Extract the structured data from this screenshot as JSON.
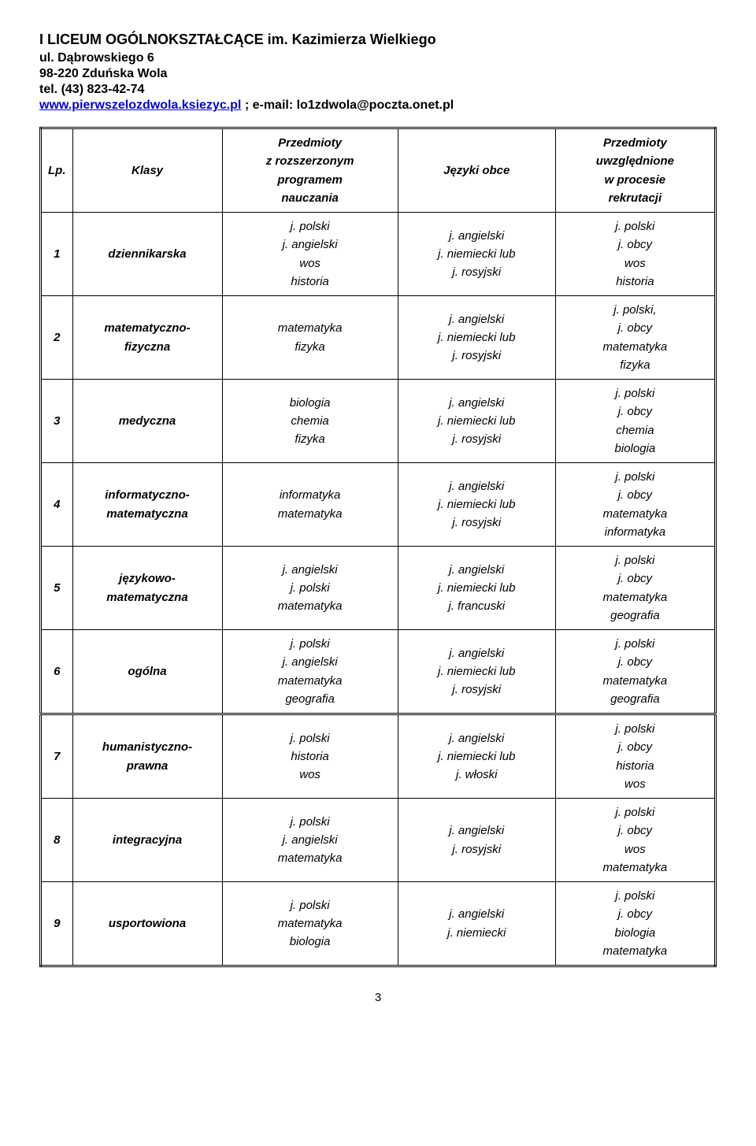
{
  "header": {
    "title": "I LICEUM OGÓLNOKSZTAŁCĄCE im. Kazimierza Wielkiego",
    "address": "ul. Dąbrowskiego 6",
    "postcode": "98-220 Zduńska Wola",
    "phone": "tel. (43) 823-42-74",
    "link": "www.pierwszelozdwola.ksiezyc.pl",
    "email_label": " ; e-mail: lo1zdwola@poczta.onet.pl"
  },
  "columns": {
    "lp": "Lp.",
    "klasy": "Klasy",
    "przedmioty_rozszerzone": [
      "Przedmioty",
      "z rozszerzonym",
      "programem",
      "nauczania"
    ],
    "jezyki": "Języki obce",
    "przedmioty_rekrutacja": [
      "Przedmioty",
      "uwzględnione",
      "w procesie",
      "rekrutacji"
    ]
  },
  "rows": [
    {
      "lp": "1",
      "klasy": "dziennikarska",
      "rozsz": [
        "j. polski",
        "j. angielski",
        "wos",
        "historia"
      ],
      "jezyki": [
        "j. angielski",
        "j. niemiecki lub",
        "j. rosyjski"
      ],
      "rekr": [
        "j. polski",
        "j. obcy",
        "wos",
        "historia"
      ]
    },
    {
      "lp": "2",
      "klasy": "matematyczno-\nfizyczna",
      "rozsz": [
        "matematyka",
        "fizyka"
      ],
      "jezyki": [
        "j. angielski",
        "j. niemiecki lub",
        "j. rosyjski"
      ],
      "rekr": [
        "j. polski,",
        "j. obcy",
        "matematyka",
        "fizyka"
      ]
    },
    {
      "lp": "3",
      "klasy": "medyczna",
      "rozsz": [
        "biologia",
        "chemia",
        "fizyka"
      ],
      "jezyki": [
        "j. angielski",
        "j. niemiecki lub",
        "j. rosyjski"
      ],
      "rekr": [
        "j. polski",
        "j. obcy",
        "chemia",
        "biologia"
      ]
    },
    {
      "lp": "4",
      "klasy": "informatyczno-\nmatematyczna",
      "rozsz": [
        "informatyka",
        "matematyka"
      ],
      "jezyki": [
        "j. angielski",
        "j. niemiecki lub",
        "j. rosyjski"
      ],
      "rekr": [
        "j. polski",
        "j. obcy",
        "matematyka",
        "informatyka"
      ]
    },
    {
      "lp": "5",
      "klasy": "językowo-\nmatematyczna",
      "rozsz": [
        "j. angielski",
        "j. polski",
        "matematyka"
      ],
      "jezyki": [
        "j. angielski",
        "j. niemiecki lub",
        "j. francuski"
      ],
      "rekr": [
        "j. polski",
        "j. obcy",
        "matematyka",
        "geografia"
      ]
    },
    {
      "lp": "6",
      "klasy": "ogólna",
      "rozsz": [
        "j. polski",
        "j. angielski",
        "matematyka",
        "geografia"
      ],
      "jezyki": [
        "j. angielski",
        "j. niemiecki lub",
        "j. rosyjski"
      ],
      "rekr": [
        "j. polski",
        "j. obcy",
        "matematyka",
        "geografia"
      ]
    },
    {
      "lp": "7",
      "klasy": "humanistyczno-\nprawna",
      "rozsz": [
        "j. polski",
        "historia",
        "wos"
      ],
      "jezyki": [
        "j. angielski",
        "j. niemiecki lub",
        "j. włoski"
      ],
      "rekr": [
        "j. polski",
        "j. obcy",
        "historia",
        "wos"
      ]
    },
    {
      "lp": "8",
      "klasy": "integracyjna",
      "rozsz": [
        "j. polski",
        "j. angielski",
        "matematyka"
      ],
      "jezyki": [
        "j. angielski",
        "j. rosyjski"
      ],
      "rekr": [
        "j. polski",
        "j. obcy",
        "wos",
        "matematyka"
      ]
    },
    {
      "lp": "9",
      "klasy": "usportowiona",
      "rozsz": [
        "j. polski",
        "matematyka",
        "biologia"
      ],
      "jezyki": [
        "j. angielski",
        "j. niemiecki"
      ],
      "rekr": [
        "j. polski",
        "j. obcy",
        "biologia",
        "matematyka"
      ]
    }
  ],
  "page_number": "3"
}
